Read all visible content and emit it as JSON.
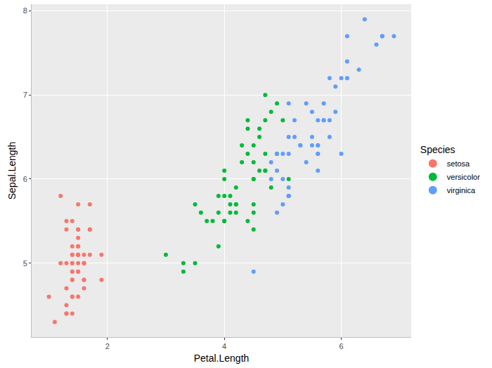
{
  "chart_data": {
    "type": "scatter",
    "x_label": "Petal.Length",
    "y_label": "Sepal.Length",
    "legend_title": "Species",
    "legend": "right",
    "grid": true,
    "marker": "circle",
    "xlim": [
      0.705,
      7.195
    ],
    "ylim": [
      4.12,
      8.08
    ],
    "xticks": [
      2,
      4,
      6
    ],
    "yticks": [
      5,
      6,
      7,
      8
    ],
    "series": [
      {
        "name": "setosa",
        "color": "#F8766D",
        "x": [
          1.4,
          1.4,
          1.3,
          1.5,
          1.4,
          1.7,
          1.4,
          1.5,
          1.4,
          1.5,
          1.5,
          1.6,
          1.4,
          1.1,
          1.2,
          1.5,
          1.3,
          1.4,
          1.7,
          1.5,
          1.7,
          1.5,
          1.0,
          1.7,
          1.9,
          1.6,
          1.6,
          1.5,
          1.4,
          1.6,
          1.6,
          1.5,
          1.5,
          1.4,
          1.5,
          1.2,
          1.3,
          1.4,
          1.3,
          1.5,
          1.3,
          1.3,
          1.3,
          1.6,
          1.9,
          1.4,
          1.6,
          1.4,
          1.5,
          1.4
        ],
        "values": [
          5.1,
          4.9,
          4.7,
          4.6,
          5.0,
          5.4,
          4.6,
          5.0,
          4.4,
          4.9,
          5.4,
          4.8,
          4.8,
          4.3,
          5.8,
          5.7,
          5.4,
          5.1,
          5.7,
          5.1,
          5.4,
          5.1,
          4.6,
          5.1,
          4.8,
          5.0,
          5.0,
          5.2,
          5.2,
          4.7,
          4.8,
          5.4,
          5.2,
          5.5,
          4.9,
          5.0,
          5.5,
          4.9,
          4.4,
          5.1,
          5.0,
          4.5,
          4.4,
          5.0,
          5.1,
          4.8,
          5.1,
          4.6,
          5.3,
          5.0
        ]
      },
      {
        "name": "versicolor",
        "color": "#00BA38",
        "x": [
          4.7,
          4.5,
          4.9,
          4.0,
          4.6,
          4.5,
          4.7,
          3.3,
          4.6,
          3.9,
          3.5,
          4.2,
          4.0,
          4.7,
          3.6,
          4.4,
          4.5,
          4.1,
          4.5,
          3.9,
          4.8,
          4.0,
          4.9,
          4.7,
          4.3,
          4.4,
          4.8,
          5.0,
          4.5,
          3.5,
          3.8,
          3.7,
          3.9,
          5.1,
          4.5,
          4.5,
          4.7,
          4.4,
          4.1,
          4.0,
          4.4,
          4.6,
          4.0,
          3.3,
          4.2,
          4.2,
          4.2,
          4.3,
          3.0,
          4.1
        ],
        "values": [
          7.0,
          6.4,
          6.9,
          5.5,
          6.5,
          5.7,
          6.3,
          4.9,
          6.6,
          5.2,
          5.0,
          5.9,
          6.0,
          6.1,
          5.6,
          6.7,
          5.6,
          5.8,
          6.2,
          5.6,
          5.9,
          6.1,
          6.3,
          6.1,
          6.4,
          6.6,
          6.8,
          6.7,
          6.0,
          5.7,
          5.5,
          5.5,
          5.8,
          6.0,
          5.4,
          6.0,
          6.7,
          6.3,
          5.6,
          5.5,
          5.5,
          6.1,
          5.8,
          5.0,
          5.6,
          5.7,
          5.7,
          6.2,
          5.1,
          5.7
        ]
      },
      {
        "name": "virginica",
        "color": "#619CFF",
        "x": [
          6.0,
          5.1,
          5.9,
          5.6,
          5.8,
          6.6,
          4.5,
          6.3,
          5.8,
          6.1,
          5.1,
          5.3,
          5.5,
          5.0,
          5.1,
          5.3,
          5.5,
          6.7,
          6.9,
          5.0,
          5.7,
          4.9,
          6.7,
          4.9,
          5.7,
          6.0,
          4.8,
          4.9,
          5.6,
          5.8,
          6.1,
          6.4,
          5.6,
          5.1,
          5.6,
          6.1,
          5.6,
          5.5,
          4.8,
          5.4,
          5.6,
          5.1,
          5.1,
          5.9,
          5.7,
          5.2,
          5.0,
          5.2,
          5.4,
          5.1
        ],
        "values": [
          6.3,
          5.8,
          7.1,
          6.3,
          6.5,
          7.6,
          4.9,
          7.3,
          6.7,
          7.2,
          6.5,
          6.4,
          6.8,
          5.7,
          5.8,
          6.4,
          6.5,
          7.7,
          7.7,
          6.0,
          6.9,
          5.6,
          7.7,
          6.3,
          6.7,
          7.2,
          6.2,
          6.1,
          6.4,
          7.2,
          7.4,
          7.9,
          6.4,
          6.3,
          6.1,
          7.7,
          6.3,
          6.4,
          6.0,
          6.9,
          6.7,
          6.9,
          5.8,
          6.8,
          6.7,
          6.7,
          6.3,
          6.5,
          6.2,
          5.9
        ]
      }
    ]
  }
}
